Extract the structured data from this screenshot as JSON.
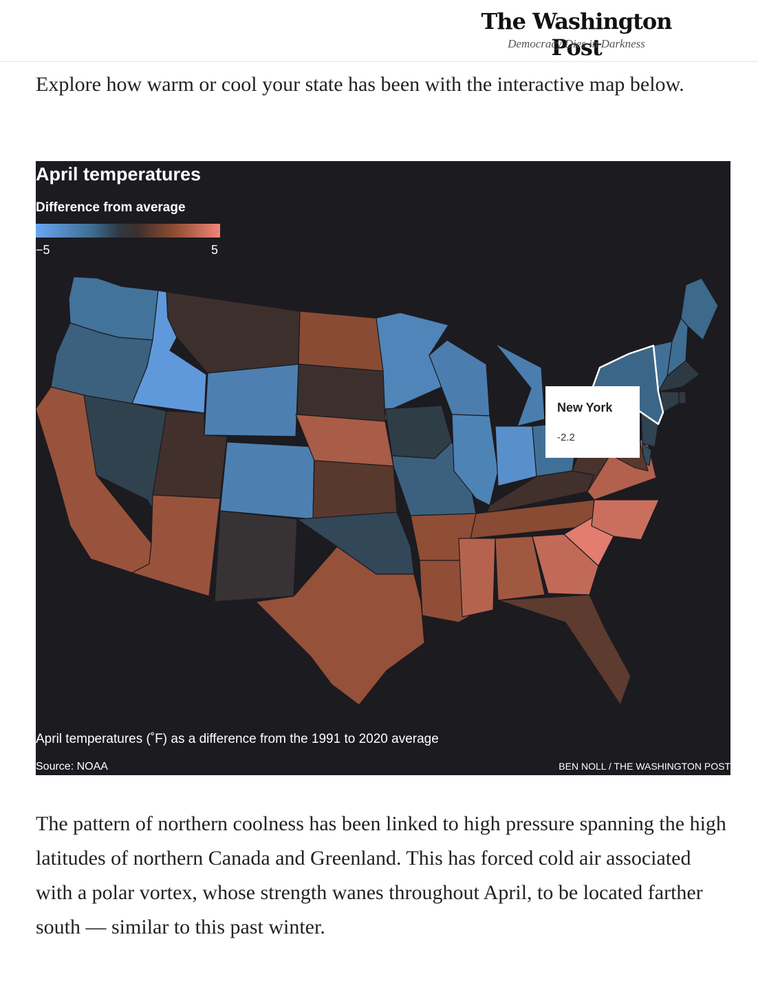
{
  "masthead": {
    "logo": "The Washington Post",
    "tagline": "Democracy Dies in Darkness"
  },
  "article": {
    "intro": "Explore how warm or cool your state has been with the interactive map below.",
    "followup": "The pattern of northern coolness has been linked to high pressure spanning the high latitudes of northern Canada and Greenland. This has forced cold air associated with a polar vortex, whose strength wanes throughout April, to be located farther south — similar to this past winter."
  },
  "graphic": {
    "title": "April temperatures",
    "legend": {
      "title": "Difference from average",
      "min_label": "−5",
      "max_label": "5",
      "min": -5,
      "max": 5
    },
    "tooltip": {
      "state": "New York",
      "value": "-2.2"
    },
    "caption": "April temperatures (˚F) as a difference from the 1991 to 2020 average",
    "source": "Source: NOAA",
    "credit": "BEN NOLL / THE WASHINGTON POST"
  },
  "colors": {
    "background": "#1c1b20",
    "cold": "#6aa7f2",
    "neutral": "#2f2f30",
    "warm": "#f2867a"
  },
  "map_data": {
    "type": "choropleth",
    "selected": "New York",
    "states": [
      {
        "name": "Washington",
        "value": -2.7
      },
      {
        "name": "Oregon",
        "value": -2.0
      },
      {
        "name": "California",
        "value": 2.8
      },
      {
        "name": "Idaho",
        "value": -4.4
      },
      {
        "name": "Nevada",
        "value": -0.8
      },
      {
        "name": "Montana",
        "value": 0.5
      },
      {
        "name": "Wyoming",
        "value": -3.3
      },
      {
        "name": "Utah",
        "value": 0.6
      },
      {
        "name": "Arizona",
        "value": 2.8
      },
      {
        "name": "Colorado",
        "value": -3.3
      },
      {
        "name": "New Mexico",
        "value": 0.1
      },
      {
        "name": "North Dakota",
        "value": 2.4
      },
      {
        "name": "South Dakota",
        "value": 0.4
      },
      {
        "name": "Nebraska",
        "value": 3.2
      },
      {
        "name": "Kansas",
        "value": 1.2
      },
      {
        "name": "Oklahoma",
        "value": -1.0
      },
      {
        "name": "Texas",
        "value": 2.7
      },
      {
        "name": "Minnesota",
        "value": -3.5
      },
      {
        "name": "Iowa",
        "value": -0.6
      },
      {
        "name": "Missouri",
        "value": -2.0
      },
      {
        "name": "Arkansas",
        "value": 2.6
      },
      {
        "name": "Louisiana",
        "value": 2.6
      },
      {
        "name": "Wisconsin",
        "value": -3.2
      },
      {
        "name": "Illinois",
        "value": -3.4
      },
      {
        "name": "Michigan",
        "value": -3.2
      },
      {
        "name": "Indiana",
        "value": -4.0
      },
      {
        "name": "Ohio",
        "value": -2.6
      },
      {
        "name": "Kentucky",
        "value": 0.6
      },
      {
        "name": "Tennessee",
        "value": 2.4
      },
      {
        "name": "Mississippi",
        "value": 3.5
      },
      {
        "name": "Alabama",
        "value": 3.0
      },
      {
        "name": "Georgia",
        "value": 3.8
      },
      {
        "name": "Florida",
        "value": 1.3
      },
      {
        "name": "South Carolina",
        "value": 4.6
      },
      {
        "name": "North Carolina",
        "value": 4.0
      },
      {
        "name": "Virginia",
        "value": 3.4
      },
      {
        "name": "West Virginia",
        "value": 0.8
      },
      {
        "name": "Pennsylvania",
        "value": -1.6
      },
      {
        "name": "New York",
        "value": -2.2
      },
      {
        "name": "Vermont",
        "value": -2.6
      },
      {
        "name": "New Hampshire",
        "value": -2.5
      },
      {
        "name": "Maine",
        "value": -2.3
      },
      {
        "name": "Massachusetts",
        "value": -0.5
      },
      {
        "name": "Connecticut",
        "value": -0.6
      },
      {
        "name": "Rhode Island",
        "value": -0.4
      },
      {
        "name": "New Jersey",
        "value": -0.9
      },
      {
        "name": "Delaware",
        "value": -1.2
      },
      {
        "name": "Maryland",
        "value": 1.2
      }
    ]
  }
}
